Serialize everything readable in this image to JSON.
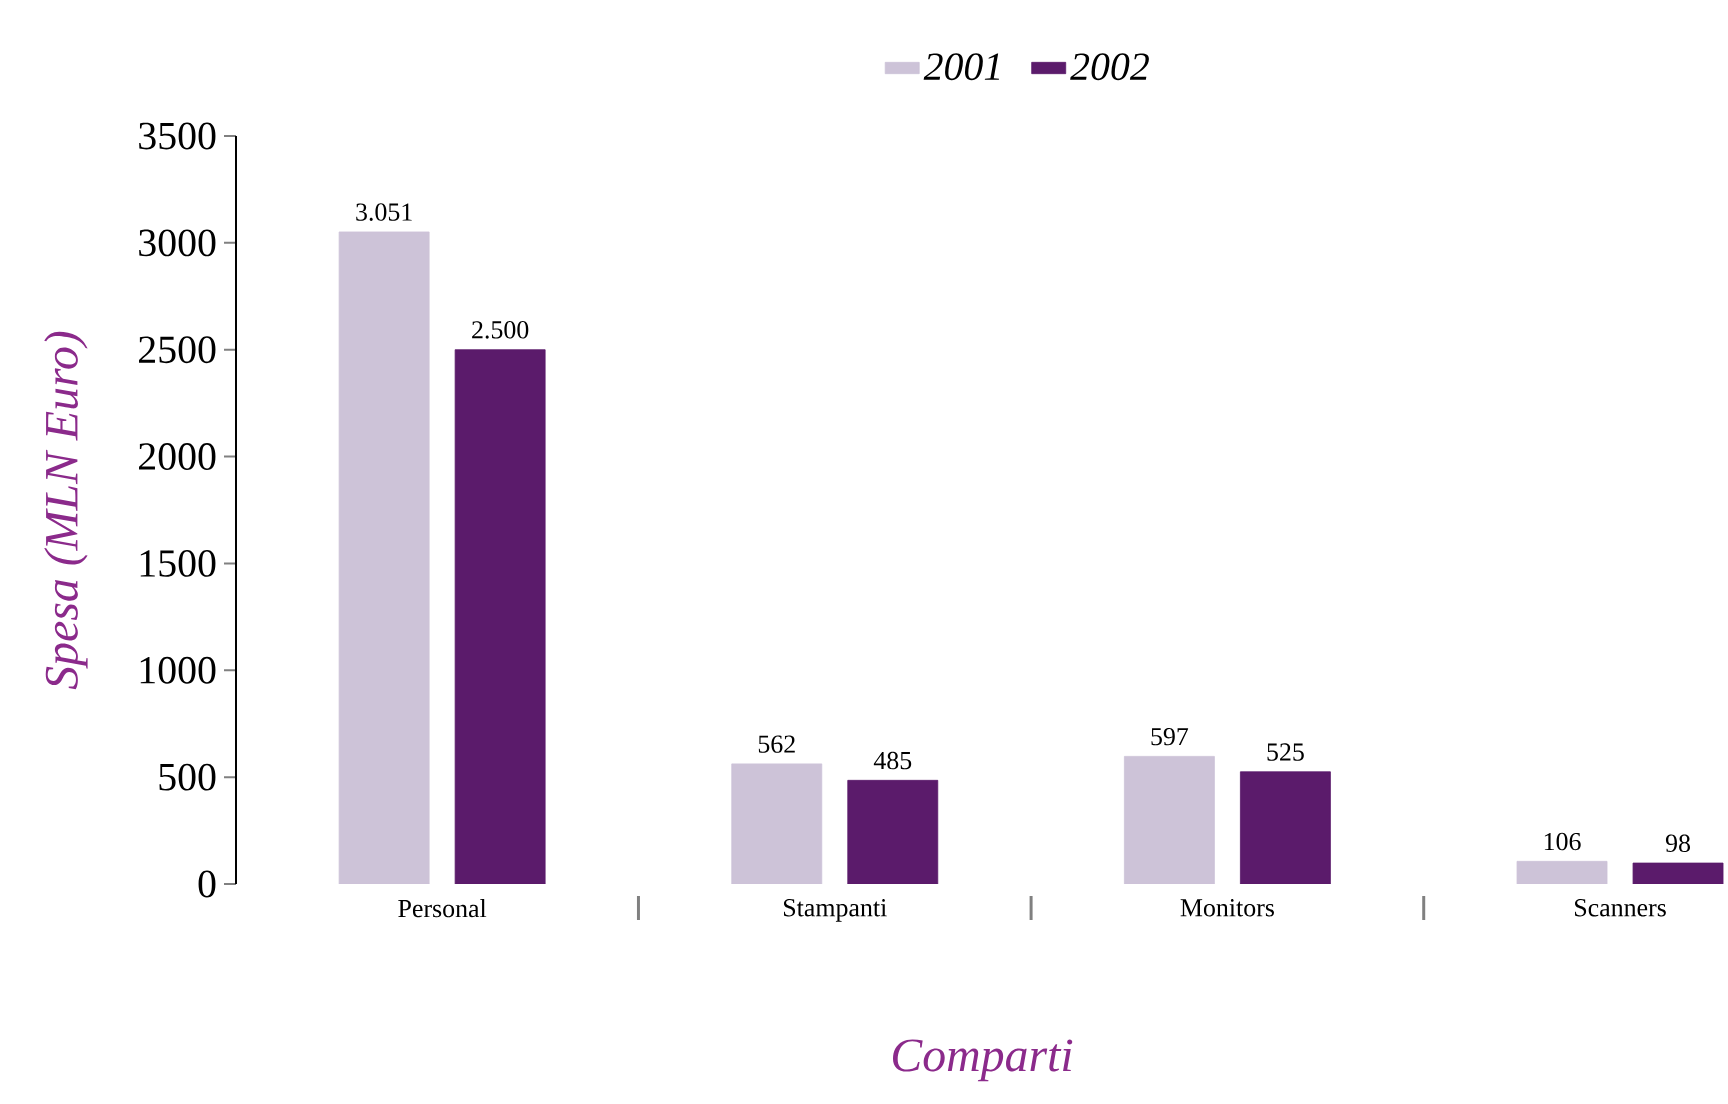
{
  "chart_data": {
    "type": "bar",
    "xlabel": "Comparti",
    "ylabel": "Spesa (MLN Euro)",
    "categories": [
      "Personal",
      "Stampanti",
      "Monitors",
      "Scanners"
    ],
    "series": [
      {
        "name": "2001",
        "color": "#cdc3d8",
        "values": [
          3051,
          562,
          597,
          106
        ],
        "value_labels": [
          "3.051",
          "562",
          "597",
          "106"
        ]
      },
      {
        "name": "2002",
        "color": "#5b1b6b",
        "values": [
          2500,
          485,
          525,
          98
        ],
        "value_labels": [
          "2.500",
          "485",
          "525",
          "98"
        ]
      }
    ],
    "ylim": [
      0,
      3500
    ],
    "yticks": [
      0,
      500,
      1000,
      1500,
      2000,
      2500,
      3000,
      3500
    ],
    "legend": "top",
    "grid": false
  }
}
